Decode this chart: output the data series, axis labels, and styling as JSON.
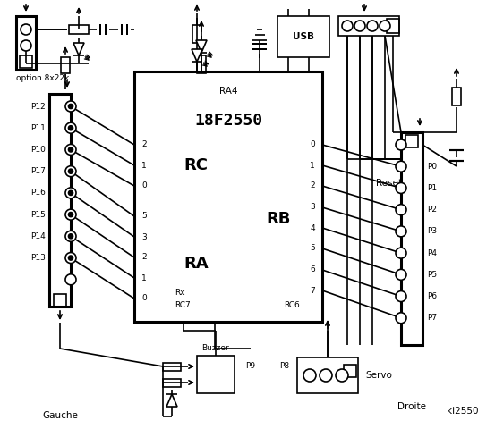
{
  "bg_color": "#ffffff",
  "chip_label": "18F2550",
  "chip_sublabel": "RA4",
  "rc_label": "RC",
  "ra_label": "RA",
  "rb_label": "RB",
  "left_rc_pins": [
    "2",
    "1",
    "0"
  ],
  "left_ra_pins": [
    "5",
    "3",
    "2",
    "1",
    "0"
  ],
  "right_rb_pins": [
    "0",
    "1",
    "2",
    "3",
    "4",
    "5",
    "6",
    "7"
  ],
  "rc7_label": "Rx",
  "rc7b_label": "RC7",
  "rc6_label": "RC6",
  "left_connector_labels": [
    "P12",
    "P11",
    "P10",
    "P17",
    "P16",
    "P15",
    "P14",
    "P13"
  ],
  "right_connector_labels": [
    "P0",
    "P1",
    "P2",
    "P3",
    "P4",
    "P5",
    "P6",
    "P7"
  ],
  "option_label": "option 8x22k",
  "reset_label": "Reset",
  "droite_label": "Droite",
  "gauche_label": "Gauche",
  "ki_label": "ki2550",
  "usb_label": "USB",
  "buzzer_label": "Buzzer",
  "p9_label": "P9",
  "p8_label": "P8",
  "servo_label": "Servo"
}
